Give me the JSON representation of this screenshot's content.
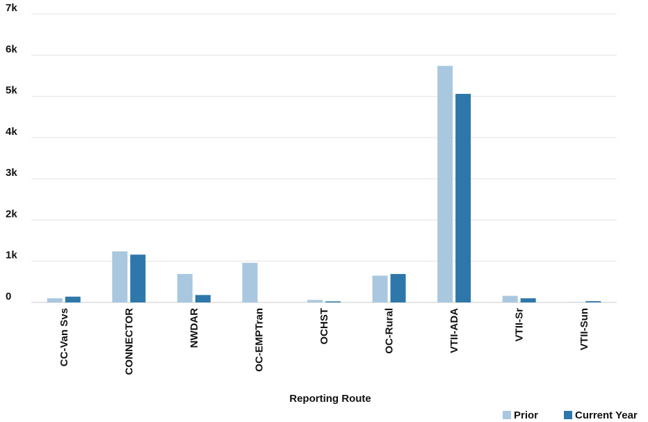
{
  "chart_data": {
    "type": "bar",
    "title": "",
    "xlabel": "Reporting Route",
    "ylabel": "",
    "ylim": [
      0,
      7000
    ],
    "yticks": [
      {
        "value": 0,
        "label": "0"
      },
      {
        "value": 1000,
        "label": "1k"
      },
      {
        "value": 2000,
        "label": "2k"
      },
      {
        "value": 3000,
        "label": "3k"
      },
      {
        "value": 4000,
        "label": "4k"
      },
      {
        "value": 5000,
        "label": "5k"
      },
      {
        "value": 6000,
        "label": "6k"
      },
      {
        "value": 7000,
        "label": "7k"
      }
    ],
    "grid": true,
    "legend_position": "bottom-right",
    "categories": [
      "CC-Van Svs",
      "CONNECTOR",
      "NWDAR",
      "OC-EMPTran",
      "OCHST",
      "OC-Rural",
      "VTII-ADA",
      "VTII-Sr",
      "VTII-Sun"
    ],
    "series": [
      {
        "name": "Prior",
        "color": "#a9c8df",
        "values": [
          100,
          1240,
          690,
          960,
          60,
          650,
          5740,
          160,
          10
        ]
      },
      {
        "name": "Current Year",
        "color": "#2e77aa",
        "values": [
          140,
          1160,
          180,
          0,
          25,
          690,
          5060,
          100,
          30
        ]
      }
    ]
  }
}
